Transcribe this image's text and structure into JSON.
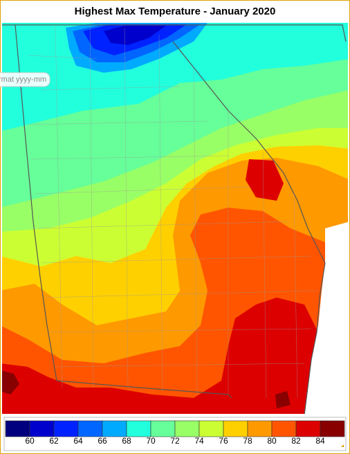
{
  "title": "Highest Max Temperature - January 2020",
  "input_hint": "rmat yyyy-mm",
  "legend": {
    "colors": [
      "#00007f",
      "#0000cc",
      "#0022ff",
      "#0066ff",
      "#00aaff",
      "#22ffdd",
      "#66ff99",
      "#99ff66",
      "#ccff33",
      "#ffd000",
      "#ff9900",
      "#ff5500",
      "#dd0000",
      "#880000"
    ],
    "ticks": [
      60,
      62,
      64,
      66,
      68,
      70,
      72,
      74,
      76,
      78,
      80,
      82,
      84
    ]
  }
}
